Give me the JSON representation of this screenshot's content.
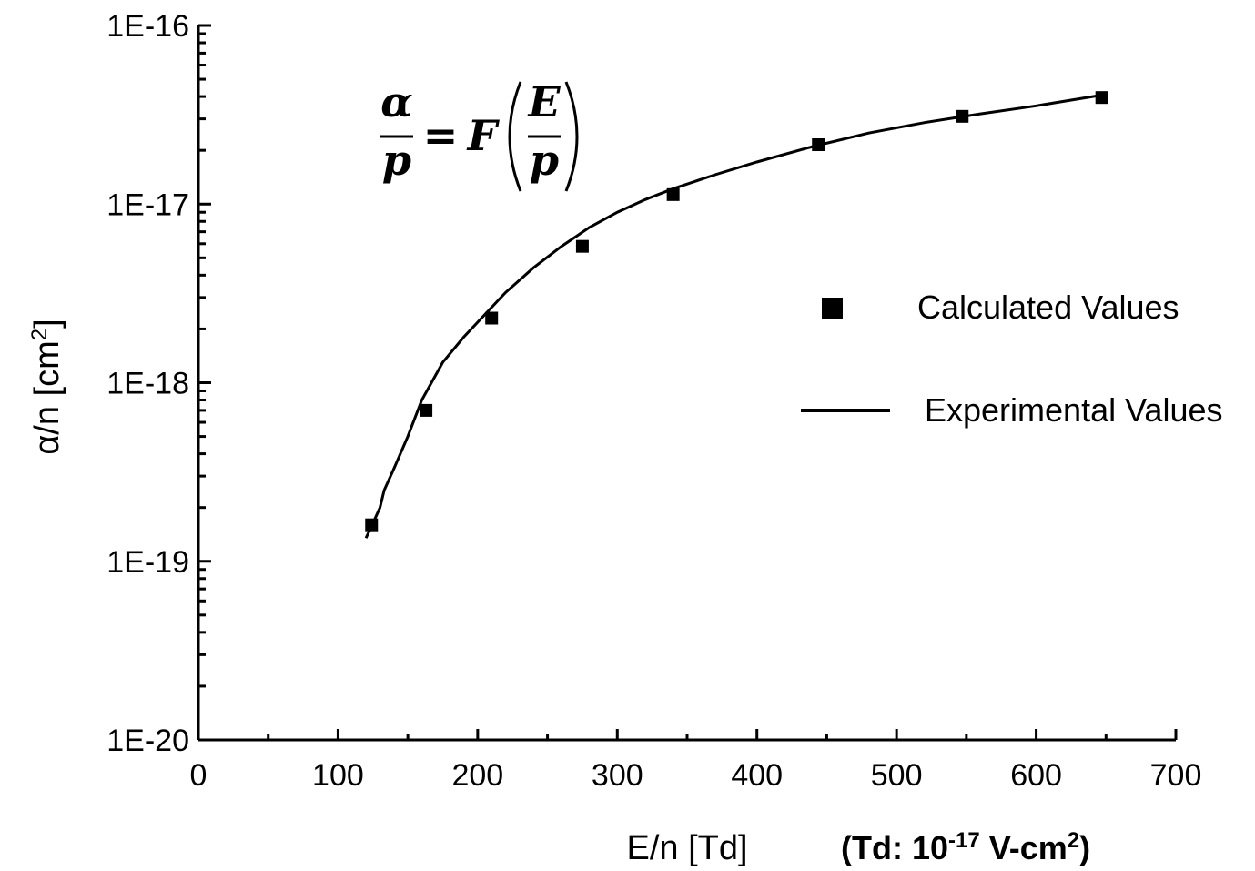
{
  "chart_data": {
    "type": "scatter",
    "title": "",
    "xlabel": "E/n [Td]",
    "ylabel_main": "α/n [cm",
    "ylabel_sup": "2",
    "ylabel_close": "]",
    "xlim": [
      0,
      700
    ],
    "ylim": [
      1e-20,
      1e-16
    ],
    "yscale": "log",
    "grid": false,
    "x_ticks": [
      0,
      100,
      200,
      300,
      400,
      500,
      600,
      700
    ],
    "x_tick_labels": [
      "0",
      "100",
      "200",
      "300",
      "400",
      "500",
      "600",
      "700"
    ],
    "y_ticks": [
      1e-20,
      1e-19,
      1e-18,
      1e-17,
      1e-16
    ],
    "y_tick_labels": [
      "1E-20",
      "1E-19",
      "1E-18",
      "1E-17",
      "1E-16"
    ],
    "legend_position": "right",
    "series": [
      {
        "name": "Calculated Values",
        "kind": "markers",
        "marker": "square",
        "color": "#000000",
        "x": [
          124,
          163,
          210,
          275,
          340,
          444,
          547,
          647
        ],
        "y": [
          1.6e-19,
          7e-19,
          2.3e-18,
          5.8e-18,
          1.13e-17,
          2.15e-17,
          3.1e-17,
          3.95e-17
        ]
      },
      {
        "name": "Experimental Values",
        "kind": "line",
        "color": "#000000",
        "x": [
          120,
          126,
          130,
          133,
          140,
          150,
          160,
          175,
          190,
          205,
          220,
          240,
          260,
          280,
          300,
          320,
          340,
          370,
          400,
          440,
          480,
          520,
          560,
          600,
          645
        ],
        "y": [
          1.35e-19,
          1.7e-19,
          2e-19,
          2.5e-19,
          3.3e-19,
          5e-19,
          8e-19,
          1.3e-18,
          1.8e-18,
          2.4e-18,
          3.2e-18,
          4.4e-18,
          5.8e-18,
          7.4e-18,
          9e-18,
          1.06e-17,
          1.22e-17,
          1.46e-17,
          1.72e-17,
          2.1e-17,
          2.5e-17,
          2.86e-17,
          3.2e-17,
          3.55e-17,
          4.05e-17
        ]
      }
    ],
    "annotations": {
      "formula": {
        "lhs_num": "α",
        "lhs_den": "p",
        "equals": "=",
        "func": "F",
        "rhs_num": "E",
        "rhs_den": "p"
      },
      "unit_note": {
        "part1": "(Td: 10",
        "sup1": "-17",
        "part2": " V-cm",
        "sup2": "2",
        "part3": ")"
      }
    }
  }
}
